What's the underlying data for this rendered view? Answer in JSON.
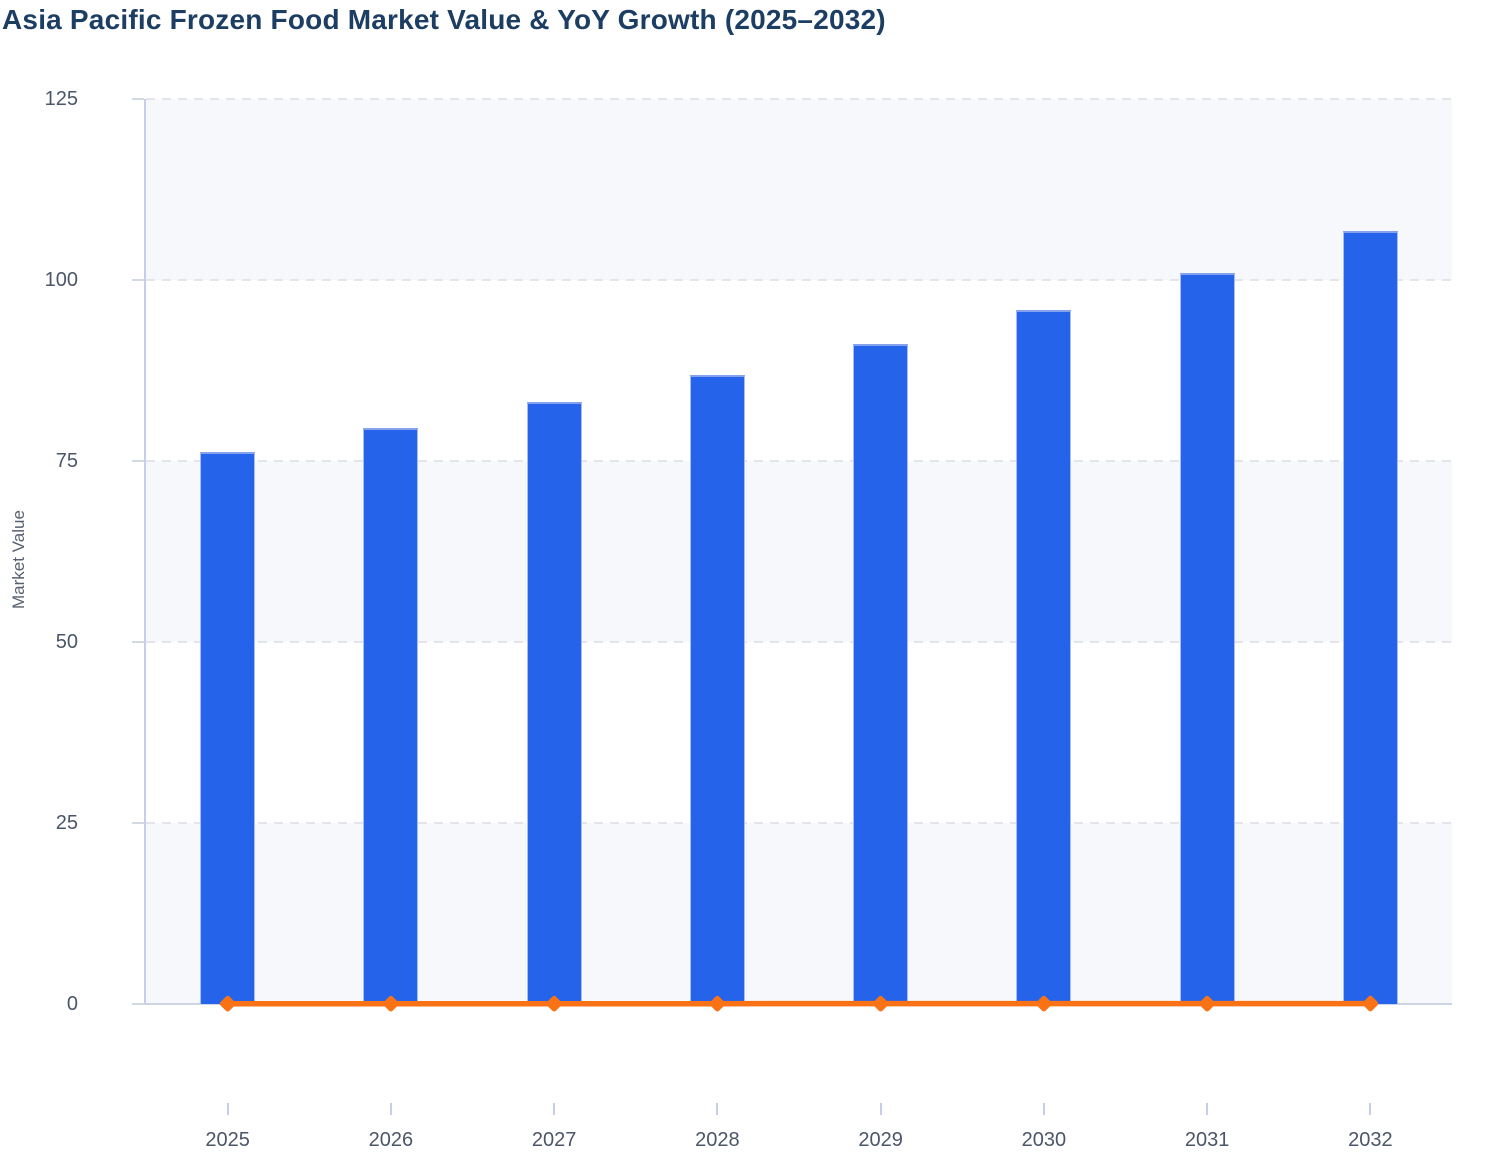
{
  "header": {
    "title": "Asia Pacific Frozen Food Market Value & YoY Growth (2025–2032)"
  },
  "chart_data": {
    "type": "bar",
    "title": "Asia Pacific Frozen Food Market Value & YoY Growth (2025–2032)",
    "categories": [
      "2025",
      "2026",
      "2027",
      "2028",
      "2029",
      "2030",
      "2031",
      "2032"
    ],
    "series": [
      {
        "name": "Market Value",
        "type": "bar",
        "color": "#2563eb",
        "values": [
          76.3,
          79.6,
          83.1,
          86.9,
          91.2,
          95.9,
          101.0,
          106.8
        ]
      },
      {
        "name": "YoY Growth",
        "type": "line",
        "color": "#f97316",
        "marker": "diamond",
        "values": [
          0.042,
          0.043,
          0.044,
          0.046,
          0.049,
          0.052,
          0.053,
          0.057
        ]
      }
    ],
    "xlabel": "",
    "ylabel": "Market Value",
    "ylim": [
      0,
      125
    ],
    "yticks": [
      0,
      25,
      50,
      75,
      100,
      125
    ],
    "grid": "horizontal-dashed",
    "plot_bands": "alternating light bands between gridlines (0-25, 50-75, 100-125)",
    "legend_position": "none"
  },
  "colors": {
    "title": "#1d3e63",
    "axis_label": "#4b5668",
    "axis_title": "#566070",
    "bar_fill": "#2563eb",
    "bar_edge": "#8fa7ef",
    "line": "#f97316",
    "band_fill": "#f7f8fb",
    "gridline": "#e2e5ea",
    "axis_line": "#c6cfea",
    "baseline": "#ccd5e5",
    "tick": "#d3d9e2"
  }
}
